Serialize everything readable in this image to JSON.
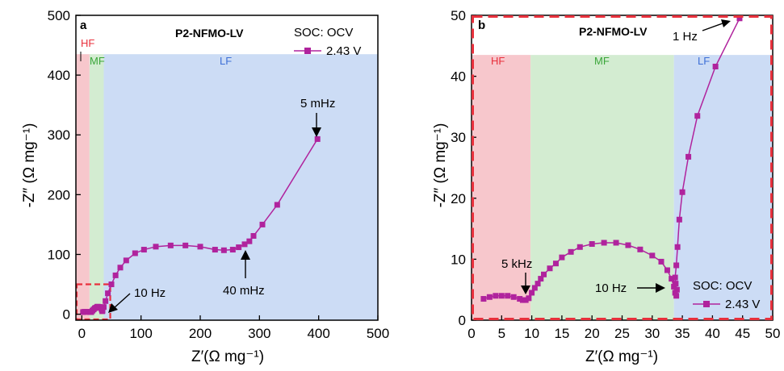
{
  "chart_data": [
    {
      "type": "scatter",
      "panel_letter": "a",
      "title": "P2-NFMO-LV",
      "soc_label": "SOC: OCV",
      "xlabel": "Z′(Ω mg⁻¹)",
      "ylabel": "-Z″ (Ω mg⁻¹)",
      "xlim": [
        -10,
        500
      ],
      "ylim": [
        -10,
        500
      ],
      "x_ticks": [
        0,
        100,
        200,
        300,
        400,
        500
      ],
      "y_ticks": [
        0,
        100,
        200,
        300,
        400,
        500
      ],
      "legend_position": "top-right",
      "regions": [
        {
          "label": "HF",
          "x_from": -10,
          "x_to": 13,
          "y_top": 435,
          "color": "#f7c7cc",
          "label_color": "#e8303c"
        },
        {
          "label": "MF",
          "x_from": 13,
          "x_to": 37,
          "y_top": 435,
          "color": "#d3ecd1",
          "label_color": "#3aa63a"
        },
        {
          "label": "LF",
          "x_from": 37,
          "x_to": 500,
          "y_top": 435,
          "color": "#ccdcf5",
          "label_color": "#3d6fd6"
        }
      ],
      "inset_box": {
        "x": [
          -10,
          48
        ],
        "y": [
          -10,
          50
        ]
      },
      "series": [
        {
          "name": "2.43 V",
          "color": "#b0239d",
          "x": [
            2,
            4,
            6,
            8,
            10,
            12,
            14,
            16,
            18,
            20,
            22,
            24,
            26,
            28,
            30,
            32,
            33,
            34,
            34.5,
            35,
            37,
            40,
            44,
            50,
            57,
            65,
            75,
            90,
            105,
            125,
            150,
            175,
            200,
            225,
            240,
            255,
            265,
            275,
            283,
            290,
            305,
            330,
            398
          ],
          "y": [
            3.5,
            4,
            4,
            4,
            4,
            4,
            3.5,
            3.5,
            6,
            8,
            10,
            11,
            12.5,
            12.5,
            12,
            11,
            9,
            7,
            5,
            6,
            12,
            22,
            35,
            50,
            65,
            78,
            90,
            102,
            108,
            113,
            115,
            115,
            113,
            108,
            107,
            108,
            112,
            117,
            122,
            131,
            150,
            183,
            293
          ]
        }
      ],
      "annotations": [
        {
          "text": "5 mHz",
          "at": [
            398,
            293
          ]
        },
        {
          "text": "40 mHz",
          "at": [
            275,
            117
          ]
        },
        {
          "text": "10 Hz",
          "at": [
            40,
            5
          ]
        }
      ]
    },
    {
      "type": "scatter",
      "panel_letter": "b",
      "title": "P2-NFMO-LV",
      "soc_label": "SOC: OCV",
      "xlabel": "Z′(Ω mg⁻¹)",
      "ylabel": "-Z″ (Ω mg⁻¹)",
      "xlim": [
        0,
        50
      ],
      "ylim": [
        0,
        50
      ],
      "x_ticks": [
        0,
        5,
        10,
        15,
        20,
        25,
        30,
        35,
        40,
        45,
        50
      ],
      "y_ticks": [
        0,
        10,
        20,
        30,
        40,
        50
      ],
      "legend_position": "bottom-right",
      "regions": [
        {
          "label": "HF",
          "x_from": 0,
          "x_to": 9.8,
          "y_top": 43.5,
          "color": "#f7c7cc",
          "label_color": "#e8303c"
        },
        {
          "label": "MF",
          "x_from": 9.8,
          "x_to": 33.6,
          "y_top": 43.5,
          "color": "#d3ecd1",
          "label_color": "#3aa63a"
        },
        {
          "label": "LF",
          "x_from": 33.6,
          "x_to": 50,
          "y_top": 43.5,
          "color": "#ccdcf5",
          "label_color": "#3d6fd6"
        }
      ],
      "series": [
        {
          "name": "2.43 V",
          "color": "#b0239d",
          "x": [
            2,
            3,
            4,
            5,
            6,
            7,
            8,
            8.5,
            9,
            9.5,
            10,
            10.5,
            11,
            11.5,
            12,
            13,
            14,
            15,
            16.5,
            18,
            20,
            22,
            24,
            26,
            28,
            30,
            31.5,
            32.5,
            33.2,
            33.6,
            33.8,
            34,
            34.1,
            33.9,
            33.8,
            34,
            34.2,
            34.5,
            35,
            36,
            37.5,
            40.5,
            44.5
          ],
          "y": [
            3.5,
            3.8,
            4,
            4,
            4,
            3.8,
            3.5,
            3.3,
            3.3,
            3.6,
            4.5,
            5.3,
            6,
            6.8,
            7.5,
            8.5,
            9.3,
            10.3,
            11.2,
            12,
            12.5,
            12.7,
            12.7,
            12.3,
            11.6,
            10.6,
            9.6,
            8.2,
            6.8,
            5.5,
            4.5,
            4,
            5,
            6,
            7,
            9,
            12,
            16.5,
            21,
            26.8,
            33.5,
            41.6,
            49.5
          ]
        }
      ],
      "annotations": [
        {
          "text": "5 kHz",
          "at": [
            9,
            3.3
          ]
        },
        {
          "text": "10 Hz",
          "at": [
            33.6,
            5.5
          ]
        },
        {
          "text": "1 Hz",
          "at": [
            44.5,
            49.5
          ]
        }
      ]
    }
  ]
}
